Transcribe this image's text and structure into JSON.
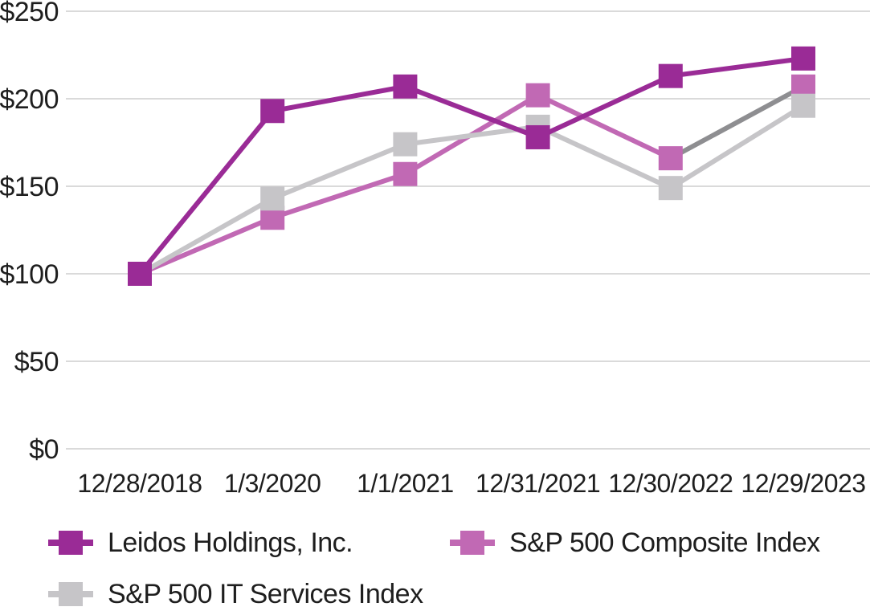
{
  "chart_data": {
    "type": "line",
    "title": "",
    "xlabel": "",
    "ylabel": "",
    "x_labels": [
      "12/28/2018",
      "1/3/2020",
      "1/1/2021",
      "12/31/2021",
      "12/30/2022",
      "12/29/2023"
    ],
    "y_ticks": [
      0,
      50,
      100,
      150,
      200,
      250
    ],
    "y_tick_labels": [
      "$0",
      "$50",
      "$100",
      "$150",
      "$200",
      "$250"
    ],
    "ylim": [
      0,
      250
    ],
    "grid": "horizontal",
    "legend_position": "bottom-left",
    "series": [
      {
        "name": "Leidos Holdings, Inc.",
        "color": "#9A2B96",
        "values": [
          100,
          193,
          207,
          178,
          213,
          223
        ]
      },
      {
        "name": "S&P 500 Composite Index",
        "color": "#C169B4",
        "final_segment_color": "#8E8E91",
        "values": [
          100,
          132,
          157,
          202,
          166,
          207
        ]
      },
      {
        "name": "S&P 500 IT Services Index",
        "color": "#C6C5C8",
        "values": [
          100,
          143,
          174,
          184,
          149,
          196
        ]
      }
    ]
  },
  "colors": {
    "gridline": "#DADADA",
    "text": "#1E1E1E",
    "background": "#FFFFFF"
  }
}
